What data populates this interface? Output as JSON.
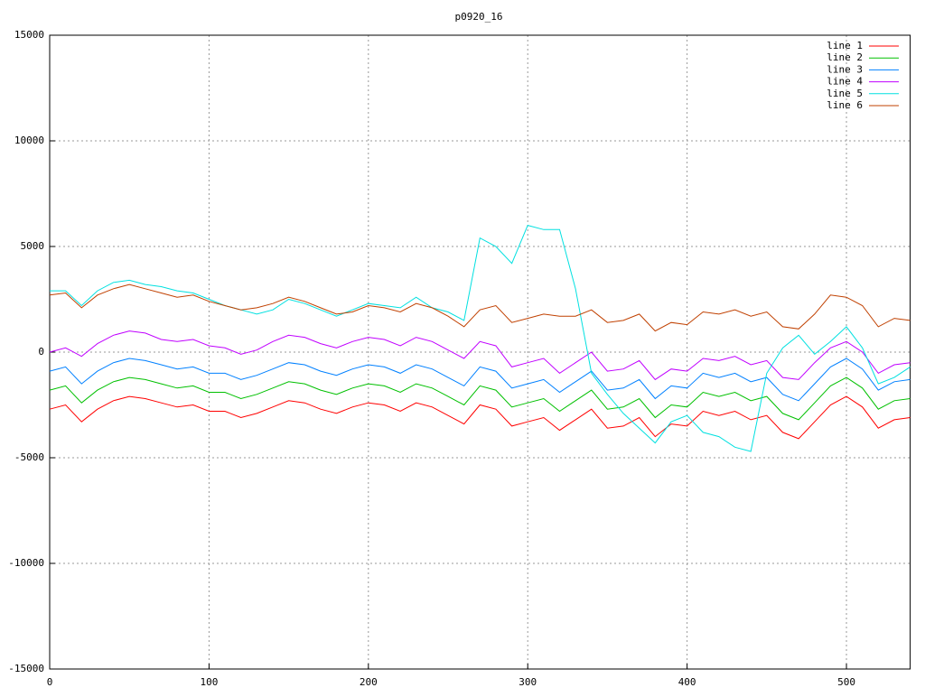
{
  "chart_data": {
    "type": "line",
    "title": "p0920_16",
    "x": [
      0,
      10,
      20,
      30,
      40,
      50,
      60,
      70,
      80,
      90,
      100,
      110,
      120,
      130,
      140,
      150,
      160,
      170,
      180,
      190,
      200,
      210,
      220,
      230,
      240,
      250,
      260,
      270,
      280,
      290,
      300,
      310,
      320,
      330,
      340,
      350,
      360,
      370,
      380,
      390,
      400,
      410,
      420,
      430,
      440,
      450,
      460,
      470,
      480,
      490,
      500,
      510,
      520,
      530,
      540
    ],
    "series": [
      {
        "name": "line 1",
        "color": "#ff0000",
        "values": [
          -2700,
          -2500,
          -3300,
          -2700,
          -2300,
          -2100,
          -2200,
          -2400,
          -2600,
          -2500,
          -2800,
          -2800,
          -3100,
          -2900,
          -2600,
          -2300,
          -2400,
          -2700,
          -2900,
          -2600,
          -2400,
          -2500,
          -2800,
          -2400,
          -2600,
          -3000,
          -3400,
          -2500,
          -2700,
          -3500,
          -3300,
          -3100,
          -3700,
          -3200,
          -2700,
          -3600,
          -3500,
          -3100,
          -4000,
          -3400,
          -3500,
          -2800,
          -3000,
          -2800,
          -3200,
          -3000,
          -3800,
          -4100,
          -3300,
          -2500,
          -2100,
          -2600,
          -3600,
          -3200,
          -3100
        ]
      },
      {
        "name": "line 2",
        "color": "#00c000",
        "values": [
          -1800,
          -1600,
          -2400,
          -1800,
          -1400,
          -1200,
          -1300,
          -1500,
          -1700,
          -1600,
          -1900,
          -1900,
          -2200,
          -2000,
          -1700,
          -1400,
          -1500,
          -1800,
          -2000,
          -1700,
          -1500,
          -1600,
          -1900,
          -1500,
          -1700,
          -2100,
          -2500,
          -1600,
          -1800,
          -2600,
          -2400,
          -2200,
          -2800,
          -2300,
          -1800,
          -2700,
          -2600,
          -2200,
          -3100,
          -2500,
          -2600,
          -1900,
          -2100,
          -1900,
          -2300,
          -2100,
          -2900,
          -3200,
          -2400,
          -1600,
          -1200,
          -1700,
          -2700,
          -2300,
          -2200
        ]
      },
      {
        "name": "line 3",
        "color": "#0080ff",
        "values": [
          -900,
          -700,
          -1500,
          -900,
          -500,
          -300,
          -400,
          -600,
          -800,
          -700,
          -1000,
          -1000,
          -1300,
          -1100,
          -800,
          -500,
          -600,
          -900,
          -1100,
          -800,
          -600,
          -700,
          -1000,
          -600,
          -800,
          -1200,
          -1600,
          -700,
          -900,
          -1700,
          -1500,
          -1300,
          -1900,
          -1400,
          -900,
          -1800,
          -1700,
          -1300,
          -2200,
          -1600,
          -1700,
          -1000,
          -1200,
          -1000,
          -1400,
          -1200,
          -2000,
          -2300,
          -1500,
          -700,
          -300,
          -800,
          -1800,
          -1400,
          -1300
        ]
      },
      {
        "name": "line 4",
        "color": "#c000ff",
        "values": [
          0,
          200,
          -200,
          400,
          800,
          1000,
          900,
          600,
          500,
          600,
          300,
          200,
          -100,
          100,
          500,
          800,
          700,
          400,
          200,
          500,
          700,
          600,
          300,
          700,
          500,
          100,
          -300,
          500,
          300,
          -700,
          -500,
          -300,
          -1000,
          -500,
          0,
          -900,
          -800,
          -400,
          -1300,
          -800,
          -900,
          -300,
          -400,
          -200,
          -600,
          -400,
          -1200,
          -1300,
          -500,
          200,
          500,
          0,
          -1000,
          -600,
          -500
        ]
      },
      {
        "name": "line 5",
        "color": "#00e0e0",
        "values": [
          2900,
          2900,
          2200,
          2900,
          3300,
          3400,
          3200,
          3100,
          2900,
          2800,
          2500,
          2200,
          2000,
          1800,
          2000,
          2500,
          2300,
          2000,
          1700,
          2000,
          2300,
          2200,
          2100,
          2600,
          2100,
          1900,
          1500,
          5400,
          5000,
          4200,
          6000,
          5800,
          5800,
          3000,
          -1000,
          -2000,
          -2900,
          -3600,
          -4300,
          -3300,
          -3000,
          -3800,
          -4000,
          -4500,
          -4700,
          -1000,
          200,
          800,
          -100,
          500,
          1200,
          200,
          -1500,
          -1200,
          -700
        ]
      },
      {
        "name": "line 6",
        "color": "#c04000",
        "values": [
          2700,
          2800,
          2100,
          2700,
          3000,
          3200,
          3000,
          2800,
          2600,
          2700,
          2400,
          2200,
          2000,
          2100,
          2300,
          2600,
          2400,
          2100,
          1800,
          1900,
          2200,
          2100,
          1900,
          2300,
          2100,
          1700,
          1200,
          2000,
          2200,
          1400,
          1600,
          1800,
          1700,
          1700,
          2000,
          1400,
          1500,
          1800,
          1000,
          1400,
          1300,
          1900,
          1800,
          2000,
          1700,
          1900,
          1200,
          1100,
          1800,
          2700,
          2600,
          2200,
          1200,
          1600,
          1500
        ]
      }
    ],
    "xlim": [
      0,
      540
    ],
    "xticks": [
      0,
      100,
      200,
      300,
      400,
      500
    ],
    "ylim": [
      -15000,
      15000
    ],
    "yticks": [
      -15000,
      -10000,
      -5000,
      0,
      5000,
      10000,
      15000
    ],
    "grid": true,
    "legend": "top-right"
  }
}
